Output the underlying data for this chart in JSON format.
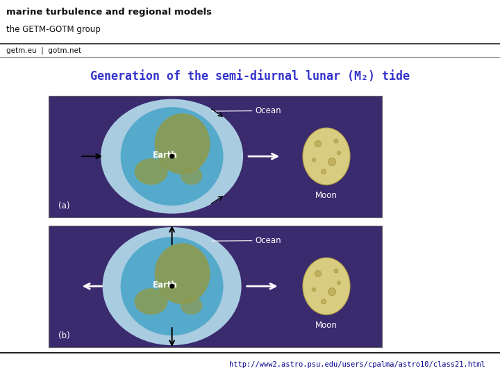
{
  "bg_color": "#ffffff",
  "header_bg": "#b5c98a",
  "header_line_color": "#2a2a2a",
  "header_title1": "marine turbulence and regional models",
  "header_title2": "the GETM-GOTM group",
  "header_sub": "getm.eu  |  gotm.net",
  "footer_bg": "#b5c98a",
  "footer_text": "http://www2.astro.psu.edu/users/cpalma/astro10/class21.html",
  "footer_text_color": "#00008B",
  "slide_title": "Generation of the semi-diurnal lunar (M₂) tide",
  "slide_title_color": "#3333cc",
  "panel_bg": "#3a2a6e",
  "ocean_color": "#aacce0",
  "earth_ocean_color": "#55aacc",
  "land_color": "#8b9b50",
  "moon_color": "#d8cc80",
  "moon_crater_color": "#c0b060",
  "moon_crater_edge": "#a09030"
}
